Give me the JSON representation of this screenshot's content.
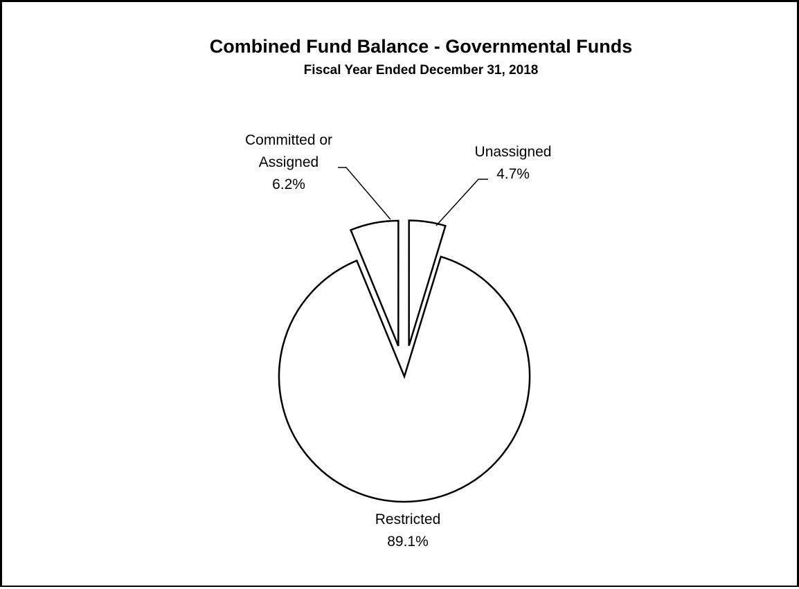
{
  "chart_data": {
    "type": "pie",
    "title": "Combined Fund Balance - Governmental Funds",
    "subtitle": "Fiscal Year Ended December 31, 2018",
    "slices": [
      {
        "label_lines": [
          "Committed or",
          "Assigned"
        ],
        "value_label": "6.2%",
        "value": 6.2
      },
      {
        "label_lines": [
          "Unassigned"
        ],
        "value_label": "4.7%",
        "value": 4.7
      },
      {
        "label_lines": [
          "Restricted"
        ],
        "value_label": "89.1%",
        "value": 89.1
      }
    ],
    "exploded": true,
    "fill_color": "#ffffff",
    "stroke_color": "#000000"
  }
}
